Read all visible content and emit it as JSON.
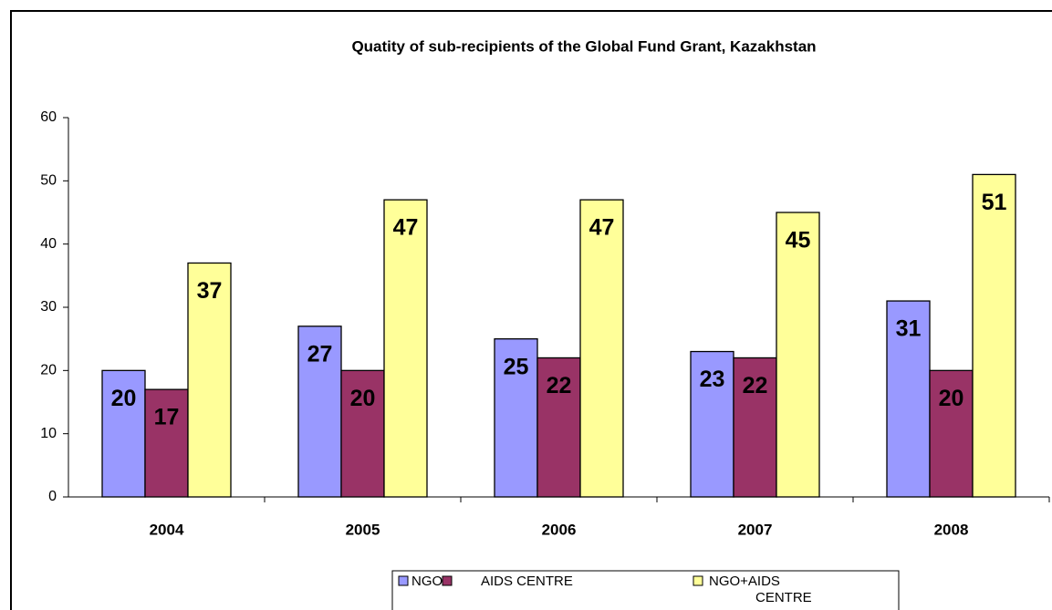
{
  "chart_data": {
    "type": "bar",
    "title": "Quatity of sub-recipients of the Global Fund Grant, Kazakhstan",
    "categories": [
      "2004",
      "2005",
      "2006",
      "2007",
      "2008"
    ],
    "series": [
      {
        "name": "NGO",
        "color": "#9999ff",
        "values": [
          20,
          27,
          25,
          23,
          31
        ]
      },
      {
        "name": "AIDS CENTRE",
        "color": "#993366",
        "values": [
          17,
          20,
          22,
          22,
          20
        ]
      },
      {
        "name": "NGO+AIDS CENTRE",
        "color": "#ffff99",
        "values": [
          37,
          47,
          47,
          45,
          51
        ]
      }
    ],
    "ylim": [
      0,
      60
    ],
    "yticks": [
      0,
      10,
      20,
      30,
      40,
      50,
      60
    ],
    "grid": false
  }
}
